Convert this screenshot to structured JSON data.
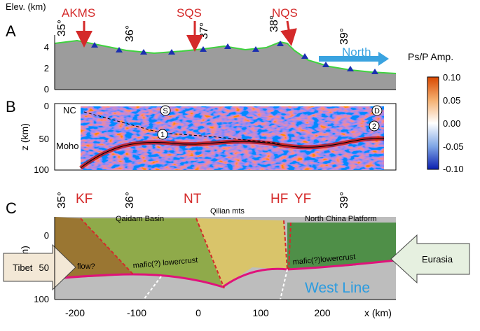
{
  "panel_labels": [
    "A",
    "B",
    "C"
  ],
  "panel_a": {
    "y_label": "Elev. (km)",
    "yticks": [
      0,
      2,
      4
    ],
    "lat_labels": [
      "35°",
      "36°",
      "37°",
      "38°",
      "39°"
    ],
    "stations": [
      "AKMS",
      "SQS",
      "NQS"
    ],
    "direction": "North"
  },
  "panel_b": {
    "y_label": "z (km)",
    "yticks": [
      0,
      50,
      100
    ],
    "labels": [
      "NC",
      "Moho",
      "S",
      "D",
      "1",
      "2"
    ]
  },
  "colorbar": {
    "title": "Ps/P Amp.",
    "ticks": [
      "0.10",
      "0.05",
      "0.00",
      "-0.05",
      "-0.10"
    ]
  },
  "panel_c": {
    "y_label": "z (km)",
    "yticks": [
      0,
      50,
      100
    ],
    "lat_labels": [
      "35°",
      "36°",
      "39°"
    ],
    "faults": [
      "KF",
      "NT",
      "HF",
      "YF"
    ],
    "regions": [
      "Qaidam Basin",
      "Qilian  mts",
      "North China Platform"
    ],
    "notes": [
      "flow?",
      "mafic(?) lowercrust",
      "mafic(?)lowercrust",
      "Tibet",
      "Eurasia",
      "West Line"
    ],
    "x_label": "x (km)",
    "xticks": [
      -200,
      -100,
      0,
      100,
      200
    ]
  }
}
